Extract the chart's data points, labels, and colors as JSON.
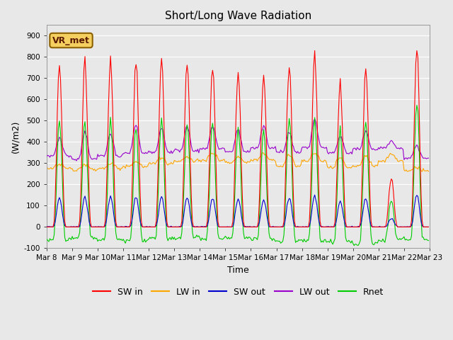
{
  "title": "Short/Long Wave Radiation",
  "ylabel": "(W/m2)",
  "xlabel": "Time",
  "ylim": [
    -100,
    950
  ],
  "xlim": [
    0,
    360
  ],
  "bg_color": "#e8e8e8",
  "plot_bg_color": "#e8e8e8",
  "legend_label": "VR_met",
  "series": {
    "SW_in": {
      "color": "#ff0000",
      "label": "SW in"
    },
    "LW_in": {
      "color": "#ffa500",
      "label": "LW in"
    },
    "SW_out": {
      "color": "#0000cd",
      "label": "SW out"
    },
    "LW_out": {
      "color": "#9900cc",
      "label": "LW out"
    },
    "Rnet": {
      "color": "#00cc00",
      "label": "Rnet"
    }
  },
  "xtick_labels": [
    "Mar 8",
    "Mar 9",
    "Mar 10",
    "Mar 11",
    "Mar 12",
    "Mar 13",
    "Mar 14",
    "Mar 15",
    "Mar 16",
    "Mar 17",
    "Mar 18",
    "Mar 19",
    "Mar 20",
    "Mar 21",
    "Mar 22",
    "Mar 23"
  ],
  "xtick_positions": [
    0,
    24,
    48,
    72,
    96,
    120,
    144,
    168,
    192,
    216,
    240,
    264,
    288,
    312,
    336,
    360
  ],
  "ytick_values": [
    -100,
    0,
    100,
    200,
    300,
    400,
    500,
    600,
    700,
    800,
    900
  ],
  "grid_color": "#ffffff",
  "title_fontsize": 11,
  "label_fontsize": 9,
  "tick_fontsize": 7.5,
  "legend_fontsize": 9,
  "sw_peaks": [
    800,
    820,
    810,
    805,
    810,
    805,
    800,
    770,
    760,
    800,
    850,
    700,
    795,
    240,
    870,
    0
  ],
  "lw_in_night": [
    275,
    268,
    275,
    283,
    298,
    310,
    315,
    305,
    315,
    285,
    310,
    278,
    285,
    310,
    265,
    265
  ],
  "lw_in_day": [
    295,
    290,
    300,
    310,
    325,
    330,
    345,
    325,
    345,
    335,
    345,
    325,
    335,
    345,
    280,
    275
  ],
  "lw_out_night": [
    335,
    320,
    335,
    348,
    353,
    358,
    368,
    355,
    372,
    350,
    372,
    350,
    365,
    370,
    325,
    325
  ],
  "lw_out_day": [
    420,
    450,
    440,
    475,
    465,
    475,
    475,
    460,
    475,
    450,
    505,
    430,
    450,
    405,
    380,
    355
  ]
}
